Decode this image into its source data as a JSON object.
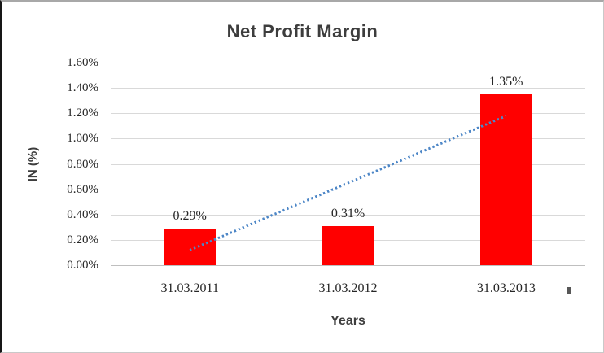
{
  "chart_data": {
    "type": "bar",
    "title": "Net Profit Margin",
    "categories": [
      "31.03.2011",
      "31.03.2012",
      "31.03.2013"
    ],
    "values": [
      0.29,
      0.31,
      1.35
    ],
    "data_labels": [
      "0.29%",
      "0.31%",
      "1.35%"
    ],
    "xlabel": "Years",
    "ylabel": "IN (%)",
    "ylim": [
      0,
      1.6
    ],
    "ytick_step": 0.2,
    "ytick_labels": [
      "1.60%",
      "1.40%",
      "1.20%",
      "1.00%",
      "0.80%",
      "0.60%",
      "0.40%",
      "0.20%",
      "0.00%"
    ],
    "grid": true,
    "legend": false,
    "bar_color": "#ff0000",
    "gridline_color": "#d9d9d9",
    "axis_line_color": "#bfbfbf",
    "text_color": "#262626",
    "title_color": "#3d3d3d",
    "trendline": {
      "type": "linear",
      "style": "dotted",
      "color": "#4e87c7",
      "start_value": 0.12,
      "end_value": 1.18
    }
  }
}
